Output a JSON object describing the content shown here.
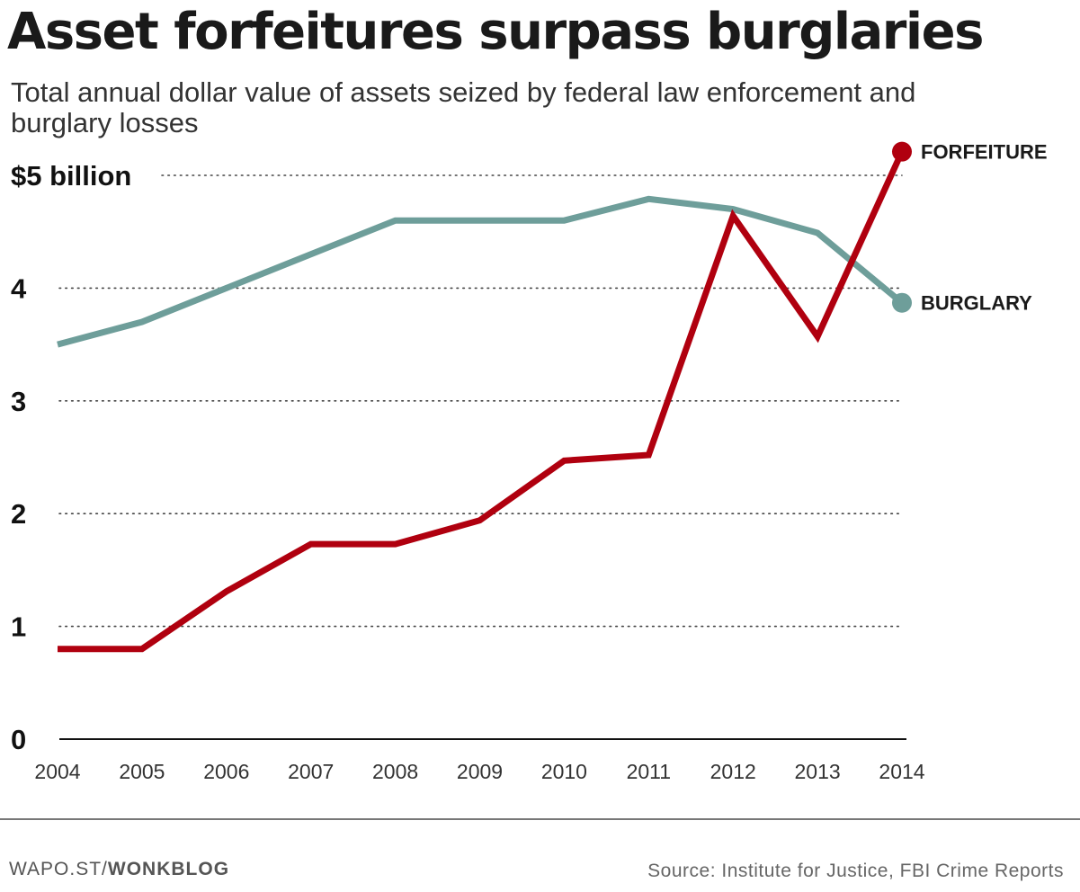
{
  "title": "Asset forfeitures surpass burglaries",
  "subtitle": "Total annual dollar value of assets seized by federal law enforcement and burglary losses",
  "chart_data": {
    "type": "line",
    "title": "Asset forfeitures surpass burglaries",
    "subtitle": "Total annual dollar value of assets seized by federal law enforcement and burglary losses",
    "xlabel": "",
    "ylabel": "",
    "x": [
      "2004",
      "2005",
      "2006",
      "2007",
      "2008",
      "2009",
      "2010",
      "2011",
      "2012",
      "2013",
      "2014"
    ],
    "yticks": [
      0,
      1,
      2,
      3,
      4,
      5
    ],
    "ytick_labels": [
      "0",
      "1",
      "2",
      "3",
      "4",
      "$5 billion"
    ],
    "ylim": [
      0,
      5.2
    ],
    "grid": "horizontal dotted",
    "legend": "direct labels at line ends",
    "series": [
      {
        "name": "FORFEITURE",
        "color": "#b0000f",
        "values": [
          0.8,
          0.8,
          1.31,
          1.73,
          1.73,
          1.94,
          2.47,
          2.52,
          4.64,
          3.57,
          5.21
        ]
      },
      {
        "name": "BURGLARY",
        "color": "#6e9e9a",
        "values": [
          3.5,
          3.7,
          4.0,
          4.3,
          4.6,
          4.6,
          4.6,
          4.79,
          4.7,
          4.49,
          3.87
        ]
      }
    ]
  },
  "footer": {
    "credit_prefix": "WAPO.ST/",
    "credit_blog": "WONKBLOG",
    "source": "Source: Institute for Justice, FBI Crime Reports"
  }
}
